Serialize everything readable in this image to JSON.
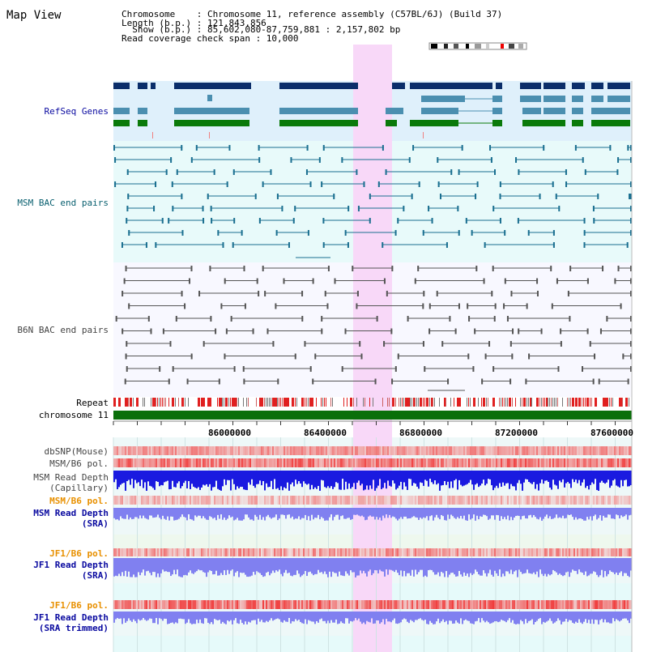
{
  "panel_title": "Map View",
  "header": {
    "line1": "Chromosome    : Chromosome 11, reference assembly (C57BL/6J) (Build 37)",
    "line2": "Length (b.p.) : 121,843,856",
    "line3": "  Show (b.p.) : 85,602,080-87,759,881 : 2,157,802 bp",
    "line4": "Read coverage check span : 10,000"
  },
  "labels": {
    "refseq": "RefSeq Genes",
    "msm_bac": "MSM BAC end pairs",
    "b6n_bac": "B6N BAC end pairs",
    "repeat": "Repeat",
    "chromosome": "chromosome 11",
    "dbsnp": "dbSNP(Mouse)",
    "msm_b6_pol_1": "MSM/B6 pol.",
    "msm_cap_1": "MSM Read Depth",
    "msm_cap_2": "(Capillary)",
    "msm_b6_pol_2": "MSM/B6 pol.",
    "msm_sra_1": "MSM Read Depth",
    "msm_sra_2": "(SRA)",
    "jf1_pol_1": "JF1/B6 pol.",
    "jf1_sra_1": "JF1 Read Depth",
    "jf1_sra_2": "(SRA)",
    "jf1_pol_2": "JF1/B6 pol.",
    "jf1_trim_1": "JF1 Read Depth",
    "jf1_trim_2": "(SRA trimmed)"
  },
  "axis": {
    "ticks": [
      "86000000",
      "86400000",
      "86800000",
      "87200000",
      "87600000"
    ]
  },
  "colors": {
    "highlight": "#f8d8f8",
    "refseq_bg": "#dff0fb",
    "msm_bac_bg": "#e8fafa",
    "b6n_bac_bg": "#f8f8ff",
    "dark_gene": "#0b2e6a",
    "mid_gene": "#4b8fb0",
    "green_gene": "#0a7a0a",
    "chromosome_bar": "#0a6f0a",
    "pol_red": "#f04040",
    "blue_depth": "#1a1ae0",
    "light_depth": "#8080f0",
    "label_blue": "#0a0aa0",
    "label_teal": "#0a6070",
    "label_orange": "#e89000"
  }
}
